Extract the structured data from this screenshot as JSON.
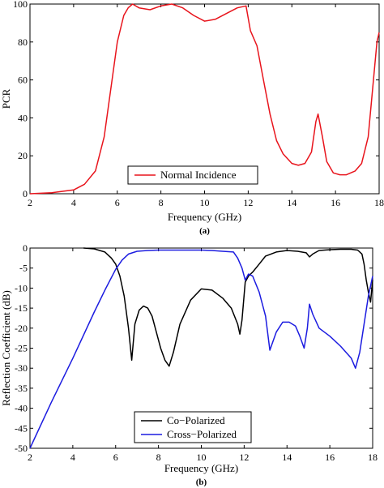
{
  "chart_data": [
    {
      "type": "line",
      "panel_label": "(a)",
      "xlabel": "Frequency (GHz)",
      "ylabel": "PCR",
      "xlim": [
        2,
        18
      ],
      "ylim": [
        0,
        100
      ],
      "xticks": [
        2,
        4,
        6,
        8,
        10,
        12,
        14,
        16,
        18
      ],
      "yticks": [
        0,
        20,
        40,
        60,
        80,
        100
      ],
      "grid": false,
      "legend_position": "bottom-center",
      "series": [
        {
          "name": "Normal Incidence",
          "color": "#e8141c",
          "x": [
            2,
            3,
            4,
            4.5,
            5,
            5.4,
            5.7,
            6.0,
            6.3,
            6.5,
            6.7,
            7.0,
            7.5,
            8.0,
            8.5,
            9.0,
            9.5,
            10.0,
            10.5,
            11.0,
            11.5,
            11.9,
            12.1,
            12.4,
            12.7,
            13.0,
            13.3,
            13.6,
            14.0,
            14.3,
            14.6,
            14.9,
            15.1,
            15.2,
            15.4,
            15.6,
            15.9,
            16.2,
            16.5,
            16.9,
            17.2,
            17.5,
            17.7,
            17.9,
            18.0
          ],
          "y": [
            0,
            0.5,
            2,
            5,
            12,
            30,
            55,
            80,
            94,
            98,
            100,
            98,
            97,
            99,
            100,
            98,
            94,
            91,
            92,
            95,
            98,
            99,
            86,
            78,
            60,
            42,
            28,
            21,
            16,
            15,
            16,
            22,
            38,
            42,
            30,
            17,
            11,
            10,
            10,
            12,
            16,
            30,
            55,
            80,
            85
          ]
        }
      ]
    },
    {
      "type": "line",
      "panel_label": "(b)",
      "xlabel": "Frequency (GHz)",
      "ylabel": "Reflection Coefficient (dB)",
      "xlim": [
        2,
        18
      ],
      "ylim": [
        -50,
        0
      ],
      "xticks": [
        2,
        4,
        6,
        8,
        10,
        12,
        14,
        16,
        18
      ],
      "yticks": [
        0,
        -5,
        -10,
        -15,
        -20,
        -25,
        -30,
        -35,
        -40,
        -45,
        -50
      ],
      "grid": false,
      "legend_position": "bottom-center",
      "series": [
        {
          "name": "Co−Polarized",
          "color": "#000000",
          "x": [
            4.5,
            5.0,
            5.5,
            5.8,
            6.0,
            6.2,
            6.4,
            6.6,
            6.75,
            6.9,
            7.1,
            7.3,
            7.5,
            7.7,
            7.9,
            8.1,
            8.3,
            8.5,
            8.7,
            9.0,
            9.5,
            10.0,
            10.5,
            11.0,
            11.4,
            11.7,
            11.8,
            11.9,
            12.05,
            12.2,
            12.4,
            12.7,
            13.0,
            13.5,
            14.0,
            14.5,
            14.9,
            15.05,
            15.2,
            15.5,
            16.0,
            16.5,
            17.0,
            17.3,
            17.5,
            17.6,
            17.7,
            17.8,
            17.9,
            18.0
          ],
          "y": [
            0,
            -0.2,
            -1,
            -2.5,
            -4,
            -7,
            -12,
            -20,
            -28,
            -19,
            -15.5,
            -14.5,
            -15,
            -17,
            -21,
            -25,
            -28,
            -29.5,
            -26,
            -19,
            -13,
            -10.2,
            -10.5,
            -12.5,
            -15,
            -19,
            -21.5,
            -18,
            -8.5,
            -7,
            -6,
            -4,
            -2,
            -1,
            -0.6,
            -0.8,
            -1.2,
            -2.2,
            -1.5,
            -0.6,
            -0.4,
            -0.3,
            -0.3,
            -0.5,
            -1.5,
            -4,
            -8,
            -11,
            -13.5,
            -8
          ]
        },
        {
          "name": "Cross−Polarized",
          "color": "#1c1ce0",
          "x": [
            2,
            3,
            4,
            5,
            5.5,
            6.0,
            6.3,
            6.6,
            7.0,
            7.5,
            8.0,
            8.5,
            9.0,
            9.5,
            10.0,
            10.5,
            11.0,
            11.5,
            11.7,
            11.9,
            12.05,
            12.2,
            12.4,
            12.7,
            13.0,
            13.2,
            13.5,
            13.8,
            14.1,
            14.4,
            14.6,
            14.8,
            14.95,
            15.05,
            15.2,
            15.5,
            16.0,
            16.5,
            17.0,
            17.2,
            17.4,
            17.6,
            17.8,
            18.0
          ],
          "y": [
            -50,
            -38.5,
            -27.5,
            -16,
            -10.5,
            -5.3,
            -3,
            -1.5,
            -0.8,
            -0.6,
            -0.5,
            -0.5,
            -0.5,
            -0.5,
            -0.5,
            -0.6,
            -0.8,
            -1,
            -2.5,
            -5,
            -8,
            -6.5,
            -7,
            -11,
            -17,
            -25.5,
            -21,
            -18.5,
            -18.5,
            -19.5,
            -22,
            -25,
            -20,
            -14,
            -16.5,
            -20,
            -22,
            -24.5,
            -27.5,
            -30,
            -26,
            -19,
            -12,
            -7
          ]
        }
      ]
    }
  ]
}
